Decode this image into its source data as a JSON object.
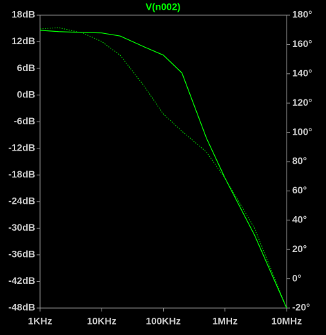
{
  "chart_data": {
    "type": "line",
    "title": "V(n002)",
    "x": [
      1000,
      2000,
      5000,
      10000,
      20000,
      50000,
      100000,
      200000,
      500000,
      1000000,
      3000000,
      10000000
    ],
    "xscale": "log",
    "xlim": [
      1000,
      10000000
    ],
    "xticks": [
      {
        "value": 1000,
        "label": "1KHz"
      },
      {
        "value": 10000,
        "label": "10KHz"
      },
      {
        "value": 100000,
        "label": "100KHz"
      },
      {
        "value": 1000000,
        "label": "1MHz"
      },
      {
        "value": 10000000,
        "label": "10MHz"
      }
    ],
    "ylim": [
      -48,
      18
    ],
    "yticks": [
      {
        "value": 18,
        "label": "18dB"
      },
      {
        "value": 12,
        "label": "12dB"
      },
      {
        "value": 6,
        "label": "6dB"
      },
      {
        "value": 0,
        "label": "0dB"
      },
      {
        "value": -6,
        "label": "-6dB"
      },
      {
        "value": -12,
        "label": "-12dB"
      },
      {
        "value": -18,
        "label": "-18dB"
      },
      {
        "value": -24,
        "label": "-24dB"
      },
      {
        "value": -30,
        "label": "-30dB"
      },
      {
        "value": -36,
        "label": "-36dB"
      },
      {
        "value": -42,
        "label": "-42dB"
      },
      {
        "value": -48,
        "label": "-48dB"
      }
    ],
    "y2lim": [
      -20,
      180
    ],
    "y2ticks": [
      {
        "value": 180,
        "label": "180°"
      },
      {
        "value": 160,
        "label": "160°"
      },
      {
        "value": 140,
        "label": "140°"
      },
      {
        "value": 120,
        "label": "120°"
      },
      {
        "value": 100,
        "label": "100°"
      },
      {
        "value": 80,
        "label": "80°"
      },
      {
        "value": 60,
        "label": "60°"
      },
      {
        "value": 40,
        "label": "40°"
      },
      {
        "value": 20,
        "label": "20°"
      },
      {
        "value": 0,
        "label": "0°"
      },
      {
        "value": -20,
        "label": "-20°"
      }
    ],
    "series": [
      {
        "color": "#00ff00",
        "line_style": "solid",
        "values": [
          14.6,
          14.3,
          14.1,
          14,
          13.3,
          10.8,
          9,
          5,
          -9.7,
          -18.7,
          -31.5,
          -48
        ]
      },
      {
        "color": "#00c800",
        "line_style": "dotted",
        "axis": "y2",
        "values": [
          170.6,
          171.5,
          167.7,
          162,
          152.6,
          131,
          112.5,
          100.8,
          86.6,
          68.7,
          34.7,
          -20
        ]
      }
    ]
  }
}
